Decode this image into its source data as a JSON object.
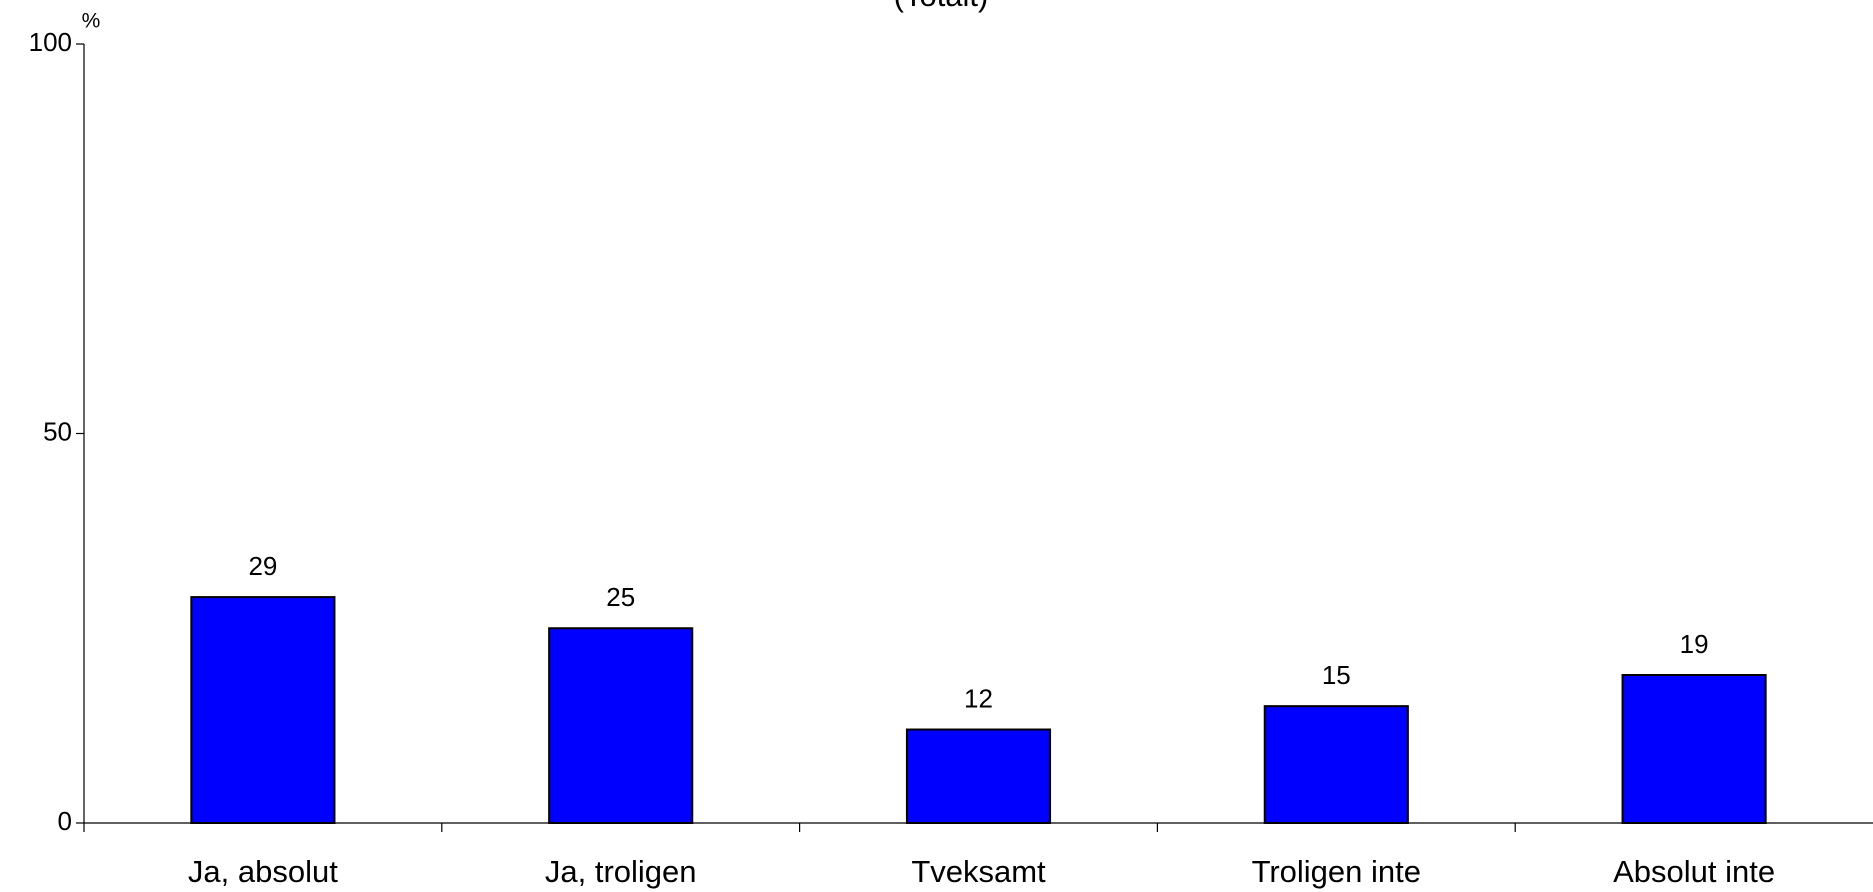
{
  "chart_data": {
    "type": "bar",
    "title": "(Totalt)",
    "y_label": "%",
    "categories": [
      "Ja, absolut",
      "Ja, troligen",
      "Tveksamt",
      "Troligen inte",
      "Absolut inte"
    ],
    "values": [
      29,
      25,
      12,
      15,
      19
    ],
    "color": "#0000ff",
    "ylim": [
      0,
      100
    ],
    "yticks": [
      0,
      50,
      100
    ],
    "grid": false
  }
}
